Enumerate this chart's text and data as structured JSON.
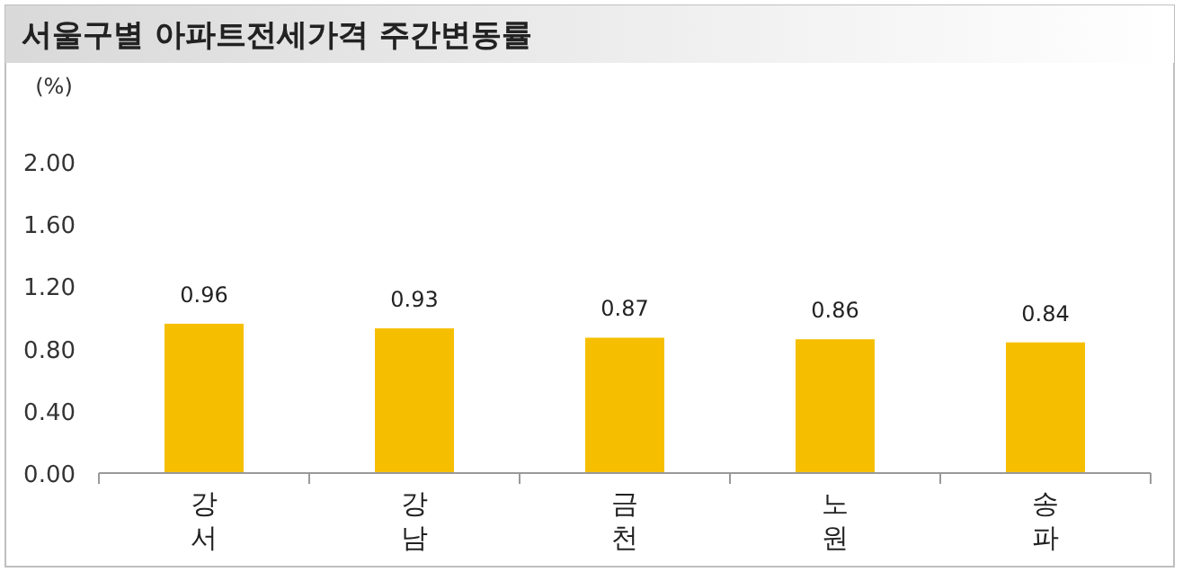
{
  "chart_data": {
    "type": "bar",
    "title": "서울구별 아파트전세가격 주간변동률",
    "ylabel": "(%)",
    "categories": [
      "강서",
      "강남",
      "금천",
      "노원",
      "송파"
    ],
    "values": [
      0.96,
      0.93,
      0.87,
      0.86,
      0.84
    ],
    "color": "#f5bf00",
    "ylim": [
      0,
      2
    ],
    "yticks": [
      {
        "value": 0,
        "label": "0.00"
      },
      {
        "value": 0.4,
        "label": "0.40"
      },
      {
        "value": 0.8,
        "label": "0.80"
      },
      {
        "value": 1.2,
        "label": "1.20"
      },
      {
        "value": 1.6,
        "label": "1.60"
      },
      {
        "value": 2,
        "label": "2.00"
      }
    ],
    "data_labels": true,
    "grid": false
  }
}
